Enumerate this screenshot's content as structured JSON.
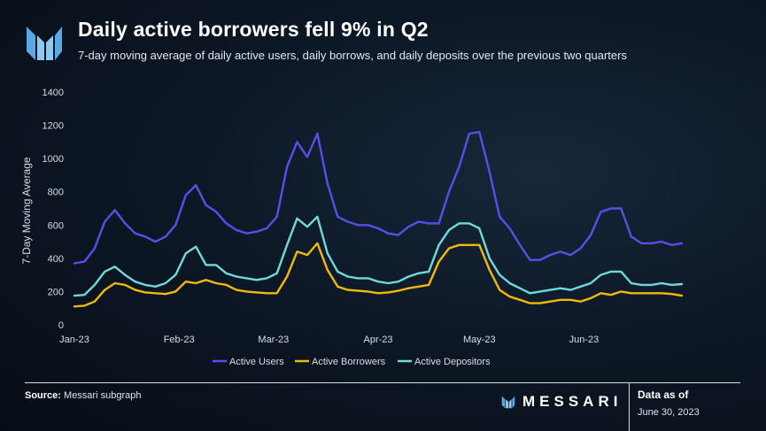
{
  "header": {
    "title": "Daily active borrowers fell 9% in Q2",
    "subtitle": "7-day moving average of daily active users, daily borrows, and daily deposits over the previous two quarters"
  },
  "footer": {
    "source_label": "Source:",
    "source_text": "Messari subgraph",
    "brand": "MESSARI",
    "as_of_label": "Data as of",
    "as_of_date": "June 30, 2023"
  },
  "colors": {
    "active_users": "#5b4de8",
    "active_borrowers": "#f2b90c",
    "active_depositors": "#6fd9dc",
    "grid": "#2a3646",
    "text": "#d9dee5"
  },
  "chart_data": {
    "type": "line",
    "ylabel": "7-Day Moving Average",
    "ylim": [
      0,
      1400
    ],
    "yticks": [
      0,
      200,
      400,
      600,
      800,
      1000,
      1200,
      1400
    ],
    "xlabels": [
      "Jan-23",
      "Feb-23",
      "Mar-23",
      "Apr-23",
      "May-23",
      "Jun-23"
    ],
    "xlim": [
      "2023-01-01",
      "2023-06-30"
    ],
    "x": [
      "2023-01-01",
      "2023-01-04",
      "2023-01-07",
      "2023-01-10",
      "2023-01-13",
      "2023-01-16",
      "2023-01-19",
      "2023-01-22",
      "2023-01-25",
      "2023-01-28",
      "2023-01-31",
      "2023-02-03",
      "2023-02-06",
      "2023-02-09",
      "2023-02-12",
      "2023-02-15",
      "2023-02-18",
      "2023-02-21",
      "2023-02-24",
      "2023-02-27",
      "2023-03-02",
      "2023-03-05",
      "2023-03-08",
      "2023-03-11",
      "2023-03-14",
      "2023-03-17",
      "2023-03-20",
      "2023-03-23",
      "2023-03-26",
      "2023-03-29",
      "2023-04-01",
      "2023-04-04",
      "2023-04-07",
      "2023-04-10",
      "2023-04-13",
      "2023-04-16",
      "2023-04-19",
      "2023-04-22",
      "2023-04-25",
      "2023-04-28",
      "2023-05-01",
      "2023-05-04",
      "2023-05-07",
      "2023-05-10",
      "2023-05-13",
      "2023-05-16",
      "2023-05-19",
      "2023-05-22",
      "2023-05-25",
      "2023-05-28",
      "2023-05-31",
      "2023-06-03",
      "2023-06-06",
      "2023-06-09",
      "2023-06-12",
      "2023-06-15",
      "2023-06-18",
      "2023-06-21",
      "2023-06-24",
      "2023-06-27",
      "2023-06-30"
    ],
    "series": [
      {
        "name": "Active Users",
        "color": "#5b4de8",
        "values": [
          370,
          380,
          460,
          620,
          690,
          610,
          550,
          530,
          500,
          530,
          600,
          780,
          840,
          720,
          680,
          610,
          570,
          550,
          560,
          580,
          650,
          950,
          1100,
          1010,
          1150,
          850,
          650,
          620,
          600,
          600,
          580,
          550,
          540,
          590,
          620,
          610,
          610,
          800,
          950,
          1150,
          1160,
          920,
          650,
          580,
          480,
          390,
          390,
          420,
          440,
          420,
          460,
          540,
          680,
          700,
          700,
          530,
          490,
          490,
          500,
          480,
          490
        ]
      },
      {
        "name": "Active Borrowers",
        "color": "#f2b90c",
        "values": [
          110,
          115,
          140,
          210,
          250,
          240,
          210,
          195,
          190,
          185,
          200,
          260,
          250,
          270,
          250,
          240,
          210,
          200,
          195,
          190,
          190,
          290,
          440,
          420,
          490,
          330,
          230,
          210,
          205,
          200,
          190,
          195,
          205,
          220,
          230,
          240,
          380,
          460,
          480,
          480,
          480,
          330,
          210,
          170,
          150,
          130,
          130,
          140,
          150,
          150,
          140,
          160,
          190,
          180,
          200,
          190,
          190,
          190,
          190,
          185,
          175
        ]
      },
      {
        "name": "Active Depositors",
        "color": "#6fd9dc",
        "values": [
          175,
          180,
          240,
          320,
          350,
          300,
          260,
          240,
          230,
          250,
          300,
          430,
          470,
          360,
          360,
          310,
          290,
          280,
          270,
          280,
          310,
          480,
          640,
          590,
          650,
          430,
          320,
          290,
          280,
          280,
          260,
          250,
          260,
          290,
          310,
          320,
          480,
          570,
          610,
          610,
          580,
          400,
          300,
          250,
          220,
          190,
          200,
          210,
          220,
          210,
          230,
          250,
          300,
          320,
          320,
          250,
          240,
          240,
          250,
          240,
          245
        ]
      }
    ],
    "legend_position": "bottom",
    "grid": false
  }
}
